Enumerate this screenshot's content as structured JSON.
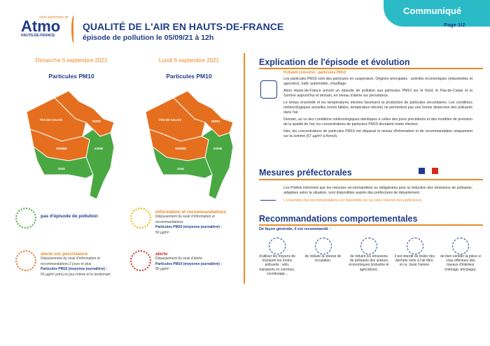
{
  "header": {
    "logo": {
      "tagline": "votre partenaire air",
      "name": "Atmo",
      "region": "HAUTS-DE-FRANCE"
    },
    "title": "QUALITÉ DE L'AIR EN HAUTS-DE-FRANCE",
    "subtitle": "épisode de pollution le 05/09/21 à 12h",
    "badge": "Communiqué",
    "page": "Page 1/2"
  },
  "maps": [
    {
      "date": "Dimanche 5 septembre 2021",
      "pollutant": "Particules PM10",
      "labels": {
        "pas_de_calais": "PAS DE CALAIS",
        "nord": "NORD",
        "somme": "SOMME",
        "aisne": "AISNE",
        "oise": "OISE"
      }
    },
    {
      "date": "Lundi 6 septembre 2021",
      "pollutant": "Particules PM10",
      "labels": {
        "pas_de_calais": "PAS DE CALAIS",
        "nord": "NORD",
        "somme": "SOMME",
        "aisne": "AISNE",
        "oise": "OISE"
      }
    }
  ],
  "legend": [
    {
      "title": "pas d'épisode de pollution"
    },
    {
      "title": "information et recommandations",
      "lines": [
        "Dépassement du seuil d'information et recommandations",
        "Particules PM10 (moyenne journalière) :",
        "50 µg/m³"
      ]
    },
    {
      "title": "alerte sur persistance",
      "lines": [
        "Dépassement du seuil d'information et recommandations 2 jours et plus",
        "Particules PM10 (moyenne journalière) :",
        "50 µg/m³ prévu le jour-même et le lendemain"
      ]
    },
    {
      "title": "alerte",
      "lines": [
        "Dépassement du seuil d'alerte",
        "Particules PM10 (moyenne journalière) :",
        "80 µg/m³"
      ]
    }
  ],
  "explication": {
    "title": "Explication de l'épisode et évolution",
    "polluant": "Polluant concerné : particules PM10",
    "paragraphs": [
      "Les particules PM10 sont des particules en suspension. Origines principales : activités économiques (industrielles et agricoles), trafic automobile, chauffage.",
      "Atmo Hauts-de-France prévoit un épisode de pollution aux particules PM10 sur le Nord, le Pas-de-Calais et la Somme aujourd'hui et demain, en niveau d'alerte sur persistance.",
      "Le temps ensoleillé et les températures élevées favorisent la production de particules secondaires. Les conditions météorologiques actuelles (vents faibles, température élevée) ne permettent pas une bonne dispersion des polluants dans l'air.",
      "Demain, au vu des conditions météorologiques identiques à celles des jours précédents et des modèles de prévision de la qualité de l'air, les concentrations de particules PM10 devraient rester élevées.",
      "Hier, les concentrations de particules PM10 ont dépassé le niveau d'information et de recommandation uniquement sur la somme (57 µg/m³ à Arrest)."
    ]
  },
  "mesures": {
    "title": "Mesures préfectorales",
    "text": "Les Préfets informent que les mesures recommandées ou obligatoires pour la réduction des émissions de polluants, adaptées selon la situation, sont disponibles auprès des préfectures de département.",
    "note": "L'ensemble des recommandations est disponible sur les sites Internet des préfectures."
  },
  "recommandations": {
    "title": "Recommandations comportementales",
    "intro": "De façon générale, il est recommandé :",
    "items": [
      "d'utiliser les moyens de transport les moins polluants : vélo, transports en commun, covoiturage...",
      "de réduire la vitesse de circulation.",
      "de réduire les émissions de polluants des acteurs économiques (industrie et agriculture).",
      "il est interdit de brûler des déchets verts à l'air libre, et ce, toute l'année.",
      "de bien ventiler la pièce si vous effectuez des travaux d'intérieur (ménage, bricolage)."
    ]
  }
}
